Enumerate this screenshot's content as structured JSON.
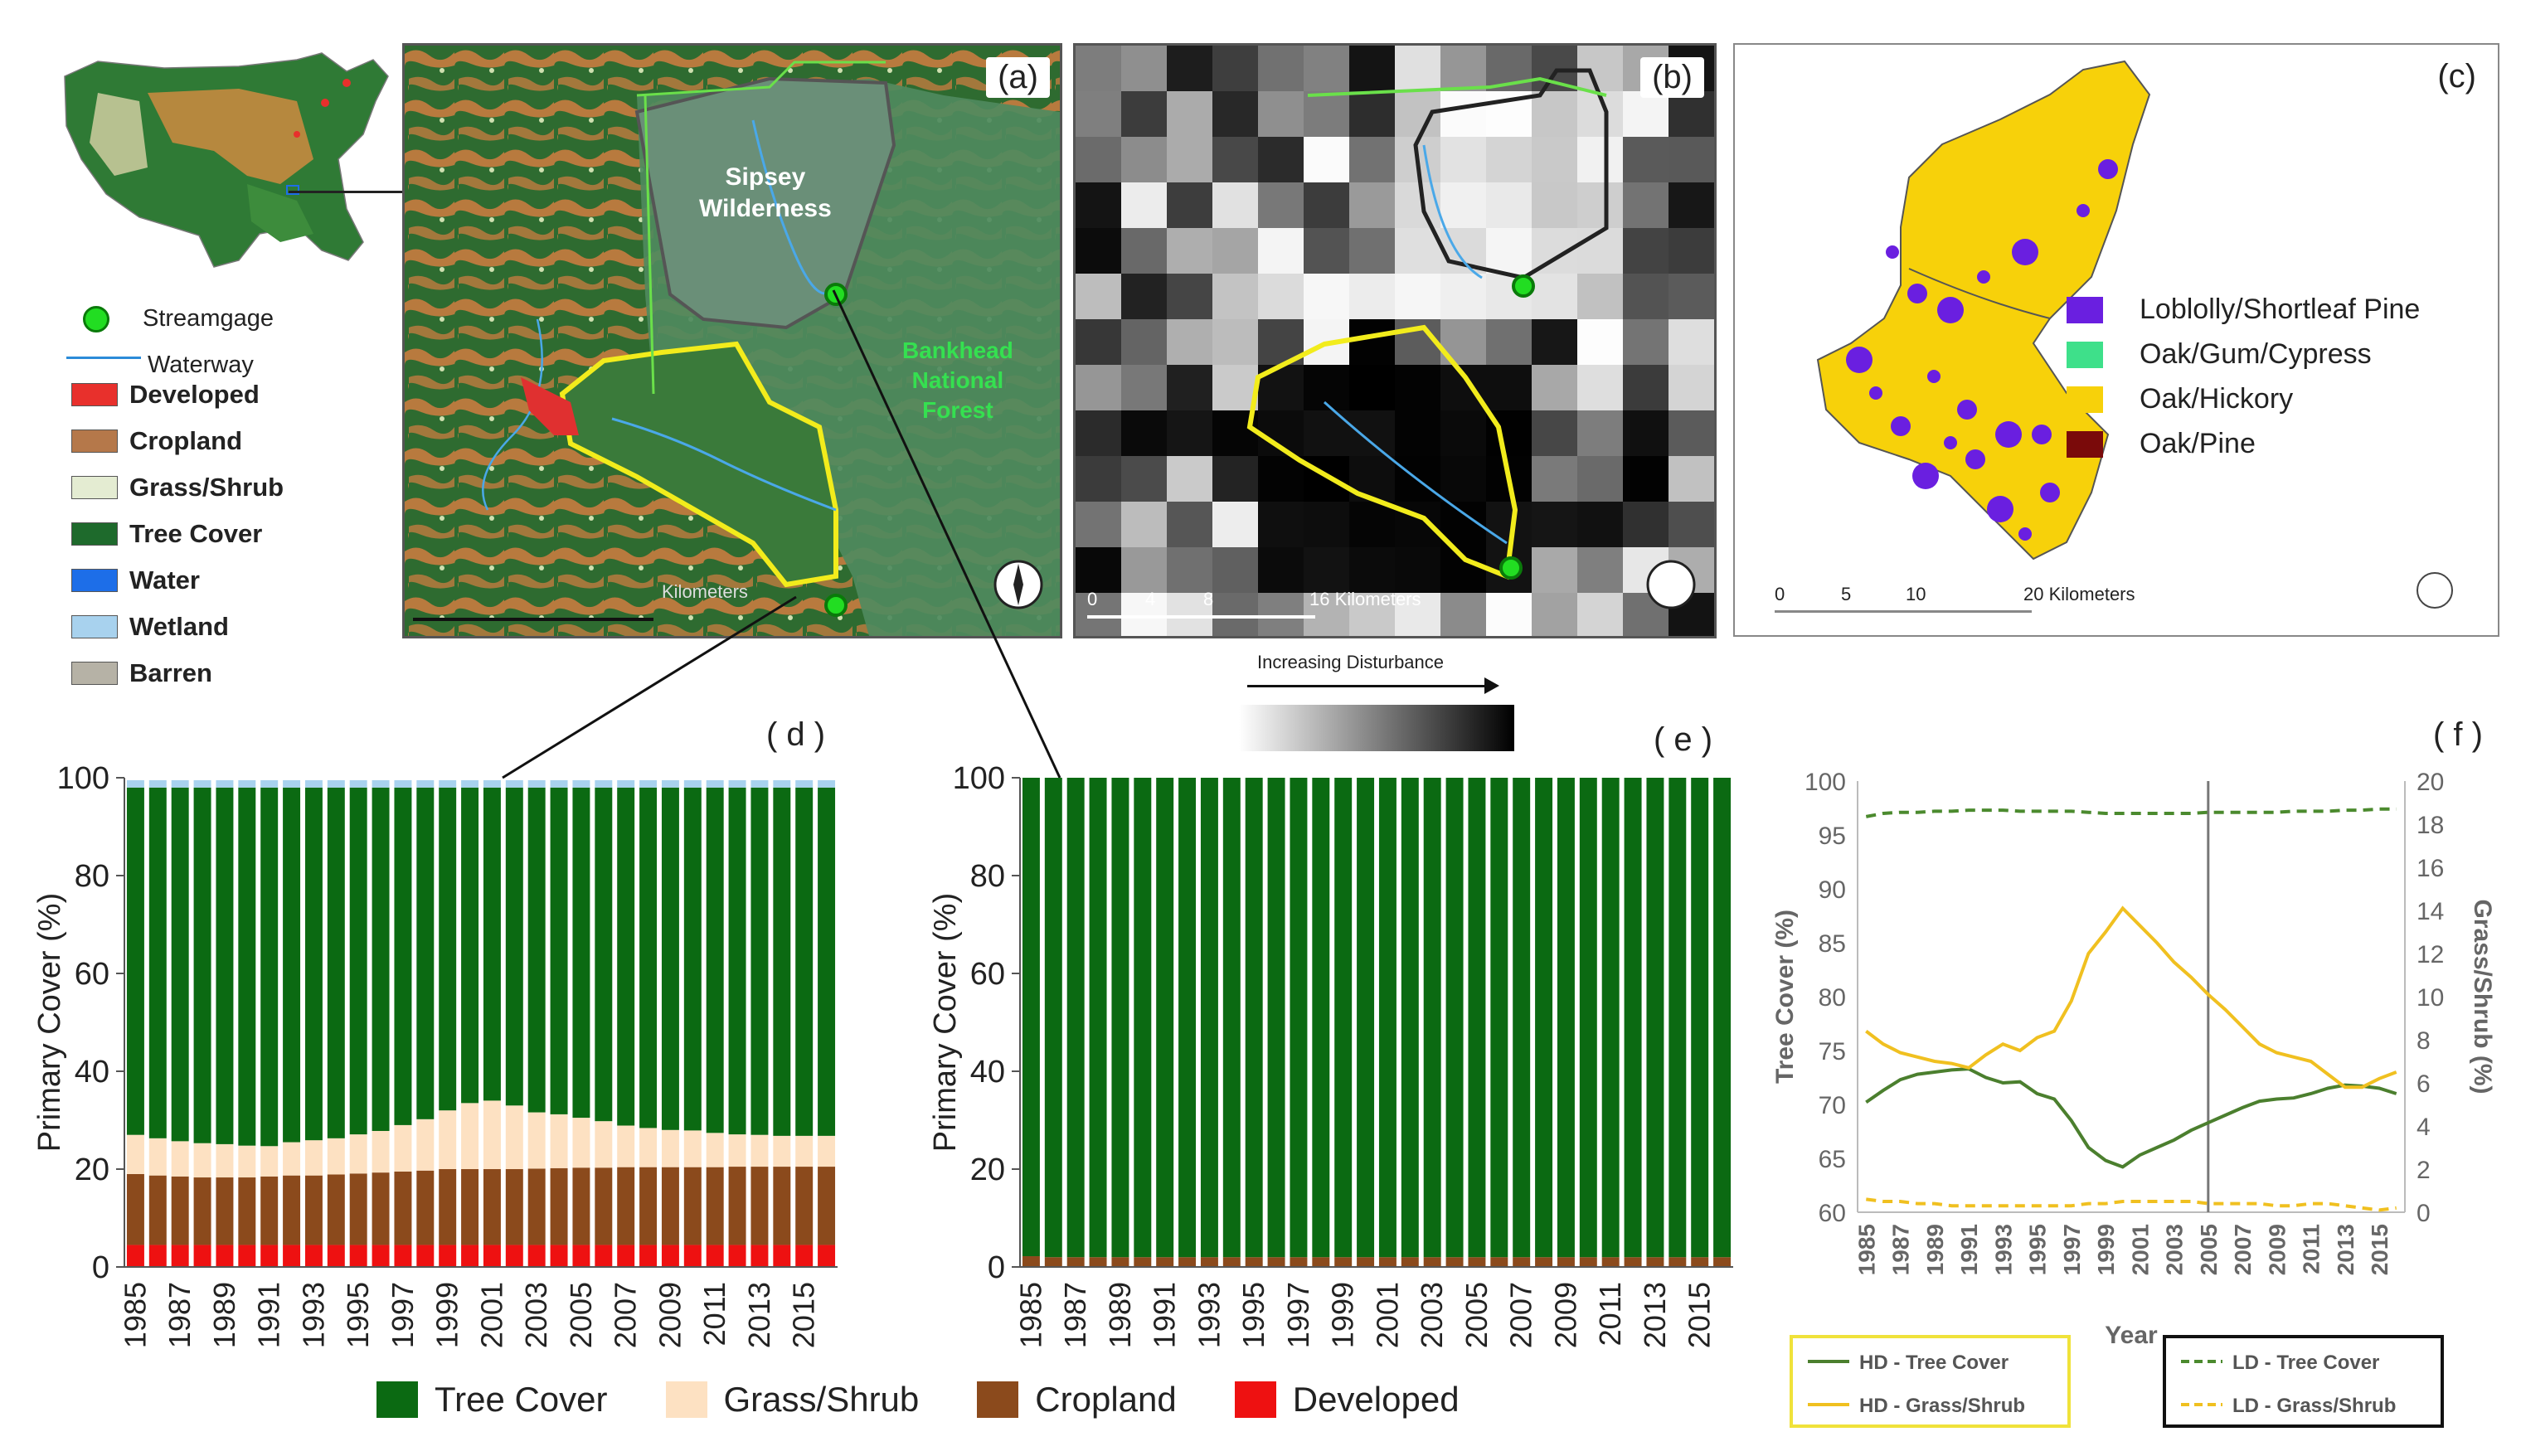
{
  "panel_letters": {
    "a": "(a)",
    "b": "(b)",
    "c": "(c)",
    "d": "( d )",
    "e": "( e )",
    "f": "( f )"
  },
  "map_legend": {
    "streamgage": "Streamgage",
    "waterway": "Waterway",
    "items": [
      {
        "label": "Developed",
        "color": "#e8302c"
      },
      {
        "label": "Cropland",
        "color": "#b5784a"
      },
      {
        "label": "Grass/Shrub",
        "color": "#e4ecd2"
      },
      {
        "label": "Tree Cover",
        "color": "#1e6a2c"
      },
      {
        "label": "Water",
        "color": "#1d6ee8"
      },
      {
        "label": "Wetland",
        "color": "#a8d2ee"
      },
      {
        "label": "Barren",
        "color": "#b6b2a6"
      }
    ]
  },
  "map_a": {
    "title_line1": "Sipsey",
    "title_line2": "Wilderness",
    "forest_line1": "Bankhead",
    "forest_line2": "National",
    "forest_line3": "Forest",
    "scale_label": "Kilometers"
  },
  "map_b": {
    "scale_ticks": [
      "0",
      "4",
      "8",
      "16 Kilometers"
    ],
    "gradient_label": "Increasing Disturbance"
  },
  "map_c": {
    "legend": [
      {
        "label": "Loblolly/Shortleaf Pine",
        "color": "#6a1fe0"
      },
      {
        "label": "Oak/Gum/Cypress",
        "color": "#3ee08a"
      },
      {
        "label": "Oak/Hickory",
        "color": "#f7d10a"
      },
      {
        "label": "Oak/Pine",
        "color": "#7a0a0a"
      }
    ],
    "scale_ticks": [
      "0",
      "5",
      "10",
      "20 Kilometers"
    ]
  },
  "bottom_legend": [
    {
      "label": "Tree Cover",
      "color": "#0b6a12"
    },
    {
      "label": "Grass/Shrub",
      "color": "#fde1c2"
    },
    {
      "label": "Cropland",
      "color": "#8b4a1c"
    },
    {
      "label": "Developed",
      "color": "#ee1111"
    }
  ],
  "chart_data": [
    {
      "id": "d",
      "type": "bar",
      "stacked": true,
      "title": "",
      "xlabel": "",
      "ylabel": "Primary Cover (%)",
      "ylim": [
        0,
        100
      ],
      "yticks": [
        0,
        20,
        40,
        60,
        80,
        100
      ],
      "categories": [
        "1985",
        "1986",
        "1987",
        "1988",
        "1989",
        "1990",
        "1991",
        "1992",
        "1993",
        "1994",
        "1995",
        "1996",
        "1997",
        "1998",
        "1999",
        "2000",
        "2001",
        "2002",
        "2003",
        "2004",
        "2005",
        "2006",
        "2007",
        "2008",
        "2009",
        "2010",
        "2011",
        "2012",
        "2013",
        "2014",
        "2015",
        "2016"
      ],
      "tick_labels": [
        "1985",
        "1987",
        "1989",
        "1991",
        "1993",
        "1995",
        "1997",
        "1999",
        "2001",
        "2003",
        "2005",
        "2007",
        "2009",
        "2011",
        "2013",
        "2015"
      ],
      "series": [
        {
          "name": "Developed",
          "color": "#ee1111",
          "values": [
            4.5,
            4.5,
            4.5,
            4.5,
            4.5,
            4.5,
            4.5,
            4.5,
            4.5,
            4.5,
            4.5,
            4.5,
            4.5,
            4.5,
            4.5,
            4.5,
            4.5,
            4.5,
            4.5,
            4.5,
            4.5,
            4.5,
            4.5,
            4.5,
            4.5,
            4.5,
            4.5,
            4.5,
            4.5,
            4.5,
            4.5,
            4.5
          ]
        },
        {
          "name": "Cropland",
          "color": "#8b4a1c",
          "values": [
            14.5,
            14.2,
            14,
            13.8,
            13.8,
            13.8,
            14,
            14.2,
            14.2,
            14.4,
            14.6,
            14.8,
            15,
            15.2,
            15.5,
            15.5,
            15.5,
            15.5,
            15.6,
            15.7,
            15.8,
            15.8,
            15.9,
            15.9,
            15.9,
            15.9,
            15.9,
            16,
            16,
            16,
            16,
            16
          ]
        },
        {
          "name": "Grass/Shrub",
          "color": "#fde1c2",
          "values": [
            8,
            7.6,
            7.2,
            7,
            6.8,
            6.5,
            6.2,
            6.8,
            7.2,
            7.4,
            8,
            8.5,
            9.5,
            10.5,
            12,
            13.5,
            14,
            13,
            11.5,
            11,
            10.2,
            9.5,
            8.5,
            8,
            7.6,
            7.5,
            7,
            6.6,
            6.5,
            6.3,
            6.3,
            6.3
          ]
        },
        {
          "name": "Tree Cover",
          "color": "#0b6a12",
          "values": [
            71,
            71.7,
            72.3,
            72.7,
            72.9,
            73.2,
            73.3,
            72.5,
            72.1,
            71.7,
            70.9,
            70.2,
            69,
            67.8,
            66,
            64.5,
            64,
            65,
            66.4,
            66.8,
            67.5,
            68.2,
            69.1,
            69.6,
            70,
            70.1,
            70.6,
            70.9,
            71,
            71.2,
            71.2,
            71.2
          ]
        },
        {
          "name": "Wetland",
          "color": "#a8d2ee",
          "values": [
            1.5,
            1.5,
            1.5,
            1.5,
            1.5,
            1.5,
            1.5,
            1.5,
            1.5,
            1.5,
            1.5,
            1.5,
            1.5,
            1.5,
            1.5,
            1.5,
            1.5,
            1.5,
            1.5,
            1.5,
            1.5,
            1.5,
            1.5,
            1.5,
            1.5,
            1.5,
            1.5,
            1.5,
            1.5,
            1.5,
            1.5,
            1.5
          ]
        }
      ]
    },
    {
      "id": "e",
      "type": "bar",
      "stacked": true,
      "title": "",
      "xlabel": "",
      "ylabel": "Primary Cover (%)",
      "ylim": [
        0,
        100
      ],
      "yticks": [
        0,
        20,
        40,
        60,
        80,
        100
      ],
      "categories": [
        "1985",
        "1986",
        "1987",
        "1988",
        "1989",
        "1990",
        "1991",
        "1992",
        "1993",
        "1994",
        "1995",
        "1996",
        "1997",
        "1998",
        "1999",
        "2000",
        "2001",
        "2002",
        "2003",
        "2004",
        "2005",
        "2006",
        "2007",
        "2008",
        "2009",
        "2010",
        "2011",
        "2012",
        "2013",
        "2014",
        "2015",
        "2016"
      ],
      "tick_labels": [
        "1985",
        "1987",
        "1989",
        "1991",
        "1993",
        "1995",
        "1997",
        "1999",
        "2001",
        "2003",
        "2005",
        "2007",
        "2009",
        "2011",
        "2013",
        "2015"
      ],
      "series": [
        {
          "name": "Cropland",
          "color": "#8b4a1c",
          "values": [
            2.2,
            2,
            2,
            2,
            2,
            2,
            2,
            2,
            2,
            2,
            2,
            2,
            2,
            2,
            2,
            2,
            2,
            2,
            2,
            2,
            2,
            2,
            2,
            2,
            2,
            2,
            2,
            2,
            2,
            2,
            2,
            2
          ]
        },
        {
          "name": "Tree Cover",
          "color": "#0b6a12",
          "values": [
            97.8,
            98,
            98,
            98,
            98,
            98,
            98,
            98,
            98,
            98,
            98,
            98,
            98,
            98,
            98,
            98,
            98,
            98,
            98,
            98,
            98,
            98,
            98,
            98,
            98,
            98,
            98,
            98,
            98,
            98,
            98,
            98
          ]
        }
      ]
    },
    {
      "id": "f",
      "type": "line",
      "title": "",
      "xlabel": "Year",
      "ylabel": "Tree Cover (%)",
      "ylabel_right": "Grass/Shrub (%)",
      "ylim": [
        60,
        100
      ],
      "ylim_right": [
        0,
        20
      ],
      "yticks": [
        60,
        65,
        70,
        75,
        80,
        85,
        90,
        95,
        100
      ],
      "yticks_right": [
        0,
        2,
        4,
        6,
        8,
        10,
        12,
        14,
        16,
        18,
        20
      ],
      "vline_x": 2005,
      "x": [
        1985,
        1986,
        1987,
        1988,
        1989,
        1990,
        1991,
        1992,
        1993,
        1994,
        1995,
        1996,
        1997,
        1998,
        1999,
        2000,
        2001,
        2002,
        2003,
        2004,
        2005,
        2006,
        2007,
        2008,
        2009,
        2010,
        2011,
        2012,
        2013,
        2014,
        2015,
        2016
      ],
      "tick_labels": [
        "1985",
        "1987",
        "1989",
        "1991",
        "1993",
        "1995",
        "1997",
        "1999",
        "2001",
        "2003",
        "2005",
        "2007",
        "2009",
        "2011",
        "2013",
        "2015"
      ],
      "series": [
        {
          "name": "HD - Tree Cover",
          "axis": "left",
          "color": "#4b7f2e",
          "dash": "",
          "values": [
            70.2,
            71.3,
            72.3,
            72.8,
            73,
            73.2,
            73.3,
            72.5,
            72,
            72.1,
            71,
            70.5,
            68.5,
            66,
            64.8,
            64.2,
            65.3,
            66,
            66.7,
            67.6,
            68.3,
            69,
            69.7,
            70.3,
            70.5,
            70.6,
            71,
            71.5,
            71.8,
            71.7,
            71.5,
            71
          ]
        },
        {
          "name": "HD - Grass/Shrub",
          "axis": "right",
          "color": "#f0c020",
          "dash": "",
          "values": [
            8.4,
            7.8,
            7.4,
            7.2,
            7,
            6.9,
            6.7,
            7.3,
            7.8,
            7.5,
            8.1,
            8.4,
            9.8,
            12,
            13,
            14.1,
            13.3,
            12.5,
            11.6,
            10.9,
            10.1,
            9.4,
            8.6,
            7.8,
            7.4,
            7.2,
            7,
            6.4,
            5.8,
            5.8,
            6.2,
            6.5
          ]
        },
        {
          "name": "LD - Tree Cover",
          "axis": "left",
          "color": "#4b8a2e",
          "dash": "12,8",
          "values": [
            96.7,
            97,
            97.1,
            97.1,
            97.2,
            97.2,
            97.3,
            97.3,
            97.3,
            97.2,
            97.2,
            97.2,
            97.2,
            97.1,
            97,
            97,
            97,
            97,
            97,
            97,
            97.1,
            97.1,
            97.1,
            97.1,
            97.1,
            97.2,
            97.2,
            97.2,
            97.3,
            97.3,
            97.4,
            97.4
          ]
        },
        {
          "name": "LD - Grass/Shrub",
          "axis": "right",
          "color": "#f0c020",
          "dash": "12,8",
          "values": [
            0.6,
            0.5,
            0.5,
            0.4,
            0.4,
            0.3,
            0.3,
            0.3,
            0.3,
            0.3,
            0.3,
            0.3,
            0.3,
            0.4,
            0.4,
            0.5,
            0.5,
            0.5,
            0.5,
            0.5,
            0.4,
            0.4,
            0.4,
            0.4,
            0.3,
            0.3,
            0.4,
            0.4,
            0.3,
            0.2,
            0.1,
            0.2
          ]
        }
      ]
    }
  ]
}
